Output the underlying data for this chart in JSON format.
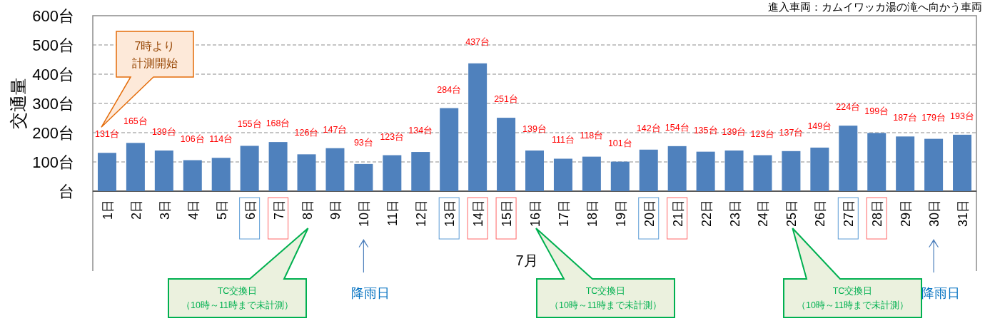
{
  "chart_data": {
    "type": "bar",
    "subtitle": "進入車両：カムイワッカ湯の滝へ向かう車両",
    "ylabel": "交通量",
    "xlabel": "7月",
    "categories": [
      "1日",
      "2日",
      "3日",
      "4日",
      "5日",
      "6日",
      "7日",
      "8日",
      "9日",
      "10日",
      "11日",
      "12日",
      "13日",
      "14日",
      "15日",
      "16日",
      "17日",
      "18日",
      "19日",
      "20日",
      "21日",
      "22日",
      "23日",
      "24日",
      "25日",
      "26日",
      "27日",
      "28日",
      "29日",
      "30日",
      "31日"
    ],
    "values": [
      131,
      165,
      139,
      106,
      114,
      155,
      168,
      126,
      147,
      93,
      123,
      134,
      284,
      437,
      251,
      139,
      111,
      118,
      101,
      142,
      154,
      135,
      139,
      123,
      137,
      149,
      224,
      199,
      187,
      179,
      193
    ],
    "value_labels": [
      "131台",
      "165台",
      "139台",
      "106台",
      "114台",
      "155台",
      "168台",
      "126台",
      "147台",
      "93台",
      "123台",
      "134台",
      "284台",
      "437台",
      "251台",
      "139台",
      "111台",
      "118台",
      "101台",
      "142台",
      "154台",
      "135台",
      "139台",
      "123台",
      "137台",
      "149台",
      "224台",
      "199台",
      "187台",
      "179台",
      "193台"
    ],
    "color": "#4f81bd",
    "ylim": [
      0,
      600
    ],
    "yticks": [
      {
        "value": 0,
        "label": "台"
      },
      {
        "value": 100,
        "label": "100台"
      },
      {
        "value": 200,
        "label": "200台"
      },
      {
        "value": 300,
        "label": "300台"
      },
      {
        "value": 400,
        "label": "400台"
      },
      {
        "value": 500,
        "label": "500台"
      },
      {
        "value": 600,
        "label": "600台"
      }
    ],
    "grid": "y",
    "annotations": [
      "7時より計測開始",
      "TC交換日（10時～11時まで未計測）",
      "TC交換日（10時～11時まで未計測）",
      "TC交換日（10時～11時まで未計測）",
      "降雨日",
      "降雨日"
    ]
  }
}
